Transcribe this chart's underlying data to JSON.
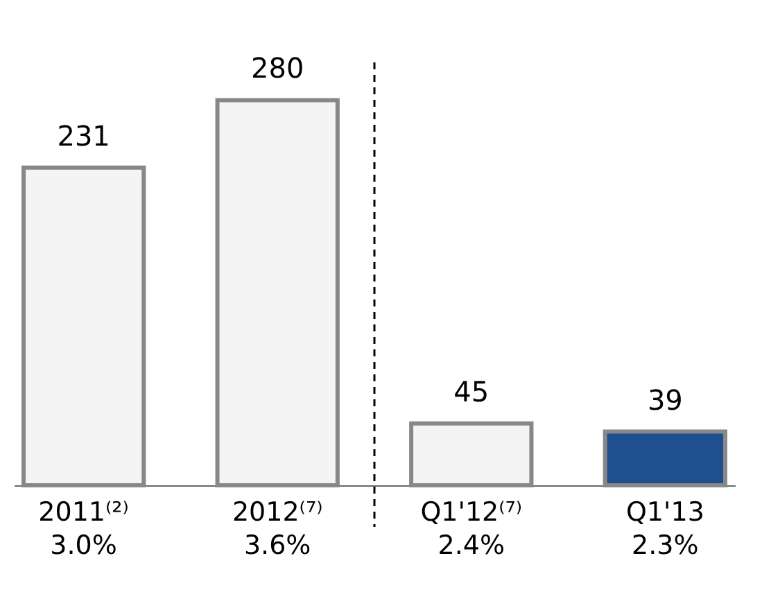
{
  "chart_data": {
    "type": "bar",
    "categories": [
      "2011⁽²⁾\n3.0%",
      "2012⁽⁷⁾\n3.6%",
      "Q1'12⁽⁷⁾\n2.4%",
      "Q1'13\n2.3%"
    ],
    "values": [
      231,
      280,
      45,
      39
    ],
    "colors": [
      "#f4f4f4",
      "#f4f4f4",
      "#f4f4f4",
      "#1f4f8f"
    ],
    "data_labels": true
  }
}
